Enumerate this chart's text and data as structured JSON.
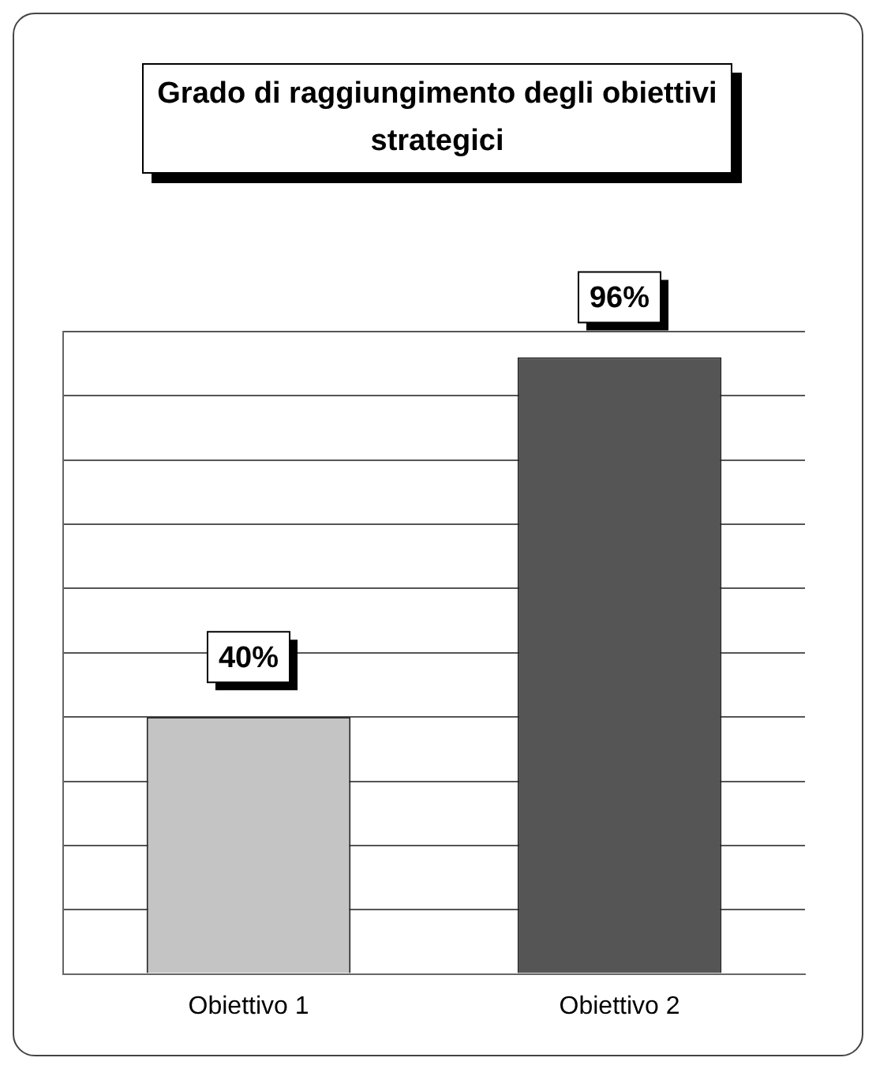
{
  "chart_data": {
    "type": "bar",
    "title": "Grado di raggiungimento degli obiettivi strategici",
    "categories": [
      "Obiettivo 1",
      "Obiettivo 2"
    ],
    "values": [
      40,
      96
    ],
    "colors": [
      "#c4c4c4",
      "#555555"
    ],
    "value_labels": [
      "40%",
      "96%"
    ],
    "ylim": [
      0,
      100
    ],
    "yticks": [
      {
        "value": 0,
        "label": null
      },
      {
        "value": 10,
        "label": null
      },
      {
        "value": 20,
        "label": null
      },
      {
        "value": 30,
        "label": null
      },
      {
        "value": 40,
        "label": null
      },
      {
        "value": 50,
        "label": null
      },
      {
        "value": 60,
        "label": null
      },
      {
        "value": 70,
        "label": null
      },
      {
        "value": 80,
        "label": null
      },
      {
        "value": 90,
        "label": null
      },
      {
        "value": 100,
        "label": null
      }
    ],
    "grid": "y",
    "tick_labels": "x",
    "legend": false
  }
}
